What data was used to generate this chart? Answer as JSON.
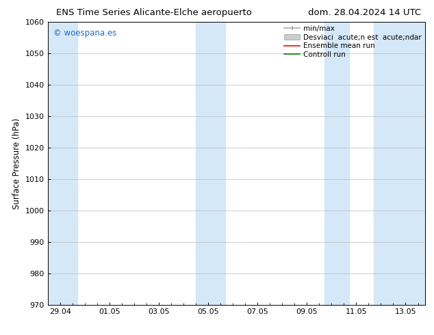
{
  "title_left": "ENS Time Series Alicante-Elche aeropuerto",
  "title_right": "dom. 28.04.2024 14 UTC",
  "ylabel": "Surface Pressure (hPa)",
  "ylim": [
    970,
    1060
  ],
  "yticks": [
    970,
    980,
    990,
    1000,
    1010,
    1020,
    1030,
    1040,
    1050,
    1060
  ],
  "xtick_labels": [
    "29.04",
    "01.05",
    "03.05",
    "05.05",
    "07.05",
    "09.05",
    "11.05",
    "13.05"
  ],
  "xtick_positions": [
    0,
    2,
    4,
    6,
    8,
    10,
    12,
    14
  ],
  "xlim": [
    -0.5,
    14.8
  ],
  "bg_color": "#ffffff",
  "plot_bg_color": "#ffffff",
  "shaded_color": "#d4e8f8",
  "legend_labels": [
    "min/max",
    "Desviaci  acute;n est  acute;ndar",
    "Ensemble mean run",
    "Controll run"
  ],
  "legend_colors_line": [
    "#aaaaaa",
    "#cccccc",
    "#ff0000",
    "#008000"
  ],
  "watermark_text": "© woespana.es",
  "watermark_color": "#1a6dc0",
  "font_size_title": 9.5,
  "font_size_ticks": 8,
  "font_size_legend": 7.5,
  "font_size_ylabel": 8.5,
  "font_size_watermark": 8.5,
  "grid_color": "#bbbbbb",
  "tick_color": "#000000",
  "band1_x0": -0.5,
  "band1_x1": 0.7,
  "band2_x0": 5.5,
  "band2_x1": 6.7,
  "band3_x0": 10.7,
  "band3_x1": 11.7,
  "band4_x0": 12.7,
  "band4_x1": 14.8
}
